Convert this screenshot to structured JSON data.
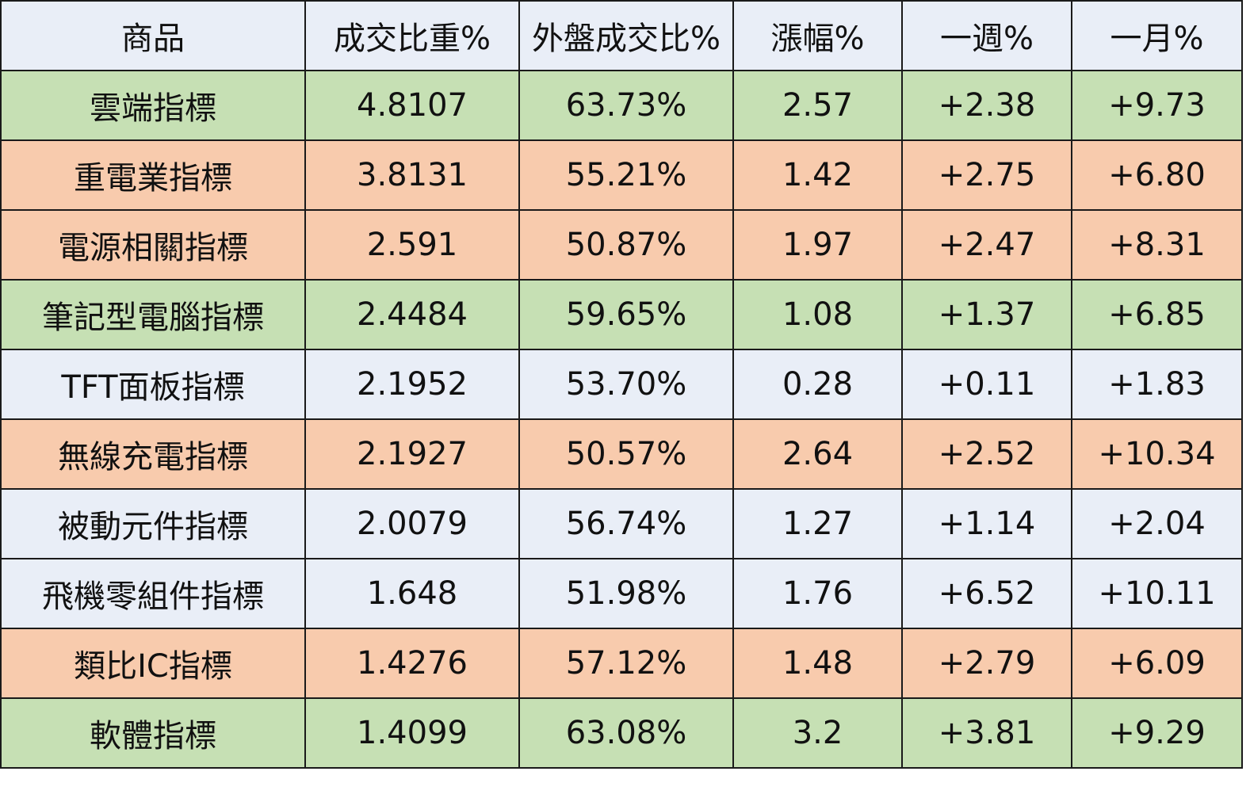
{
  "table": {
    "headers": [
      "商品",
      "成交比重%",
      "外盤成交比%",
      "漲幅%",
      "一週%",
      "一月%"
    ],
    "row_colors": {
      "green": "#c6e0b4",
      "orange": "#f8cbad",
      "blue": "#e9eef7"
    },
    "rows": [
      {
        "color": "green",
        "cells": [
          "雲端指標",
          "4.8107",
          "63.73%",
          "2.57",
          "+2.38",
          "+9.73"
        ]
      },
      {
        "color": "orange",
        "cells": [
          "重電業指標",
          "3.8131",
          "55.21%",
          "1.42",
          "+2.75",
          "+6.80"
        ]
      },
      {
        "color": "orange",
        "cells": [
          "電源相關指標",
          "2.591",
          "50.87%",
          "1.97",
          "+2.47",
          "+8.31"
        ]
      },
      {
        "color": "green",
        "cells": [
          "筆記型電腦指標",
          "2.4484",
          "59.65%",
          "1.08",
          "+1.37",
          "+6.85"
        ]
      },
      {
        "color": "blue",
        "cells": [
          "TFT面板指標",
          "2.1952",
          "53.70%",
          "0.28",
          "+0.11",
          "+1.83"
        ]
      },
      {
        "color": "orange",
        "cells": [
          "無線充電指標",
          "2.1927",
          "50.57%",
          "2.64",
          "+2.52",
          "+10.34"
        ]
      },
      {
        "color": "blue",
        "cells": [
          "被動元件指標",
          "2.0079",
          "56.74%",
          "1.27",
          "+1.14",
          "+2.04"
        ]
      },
      {
        "color": "blue",
        "cells": [
          "飛機零組件指標",
          "1.648",
          "51.98%",
          "1.76",
          "+6.52",
          "+10.11"
        ]
      },
      {
        "color": "orange",
        "cells": [
          "類比IC指標",
          "1.4276",
          "57.12%",
          "1.48",
          "+2.79",
          "+6.09"
        ]
      },
      {
        "color": "green",
        "cells": [
          "軟體指標",
          "1.4099",
          "63.08%",
          "3.2",
          "+3.81",
          "+9.29"
        ]
      }
    ]
  }
}
